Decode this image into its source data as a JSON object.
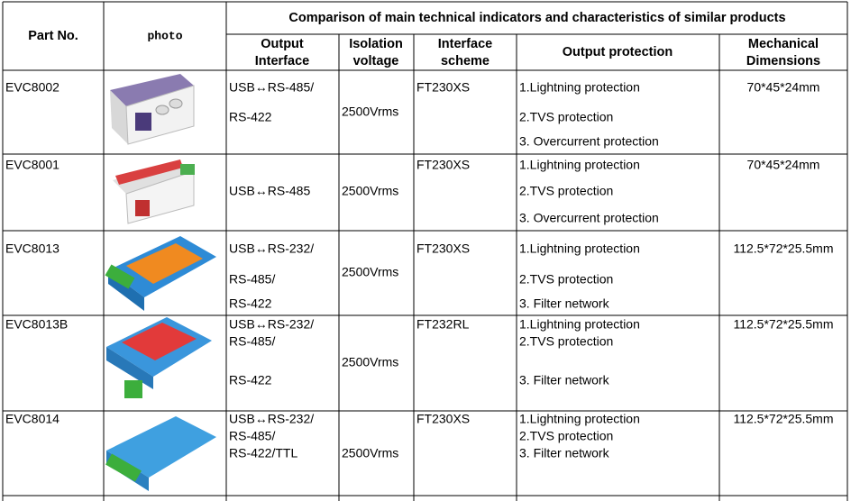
{
  "header": {
    "part_no": "Part No.",
    "photo": "photo",
    "title": "Comparison of main technical indicators and characteristics of similar products",
    "columns": [
      [
        "Output",
        "Interface"
      ],
      [
        "Isolation",
        "voltage"
      ],
      [
        "Interface",
        "scheme"
      ],
      [
        "Output protection"
      ],
      [
        "Mechanical",
        "Dimensions"
      ]
    ]
  },
  "rows": [
    {
      "part": "EVC8002",
      "interface": [
        "USB↔RS-485/",
        "RS-422"
      ],
      "voltage": "2500Vrms",
      "scheme": "FT230XS",
      "protection": [
        "1.Lightning protection",
        "2.TVS protection",
        "3. Overcurrent protection"
      ],
      "dimensions": "70*45*24mm"
    },
    {
      "part": "EVC8001",
      "interface": [
        "USB↔RS-485"
      ],
      "voltage": "2500Vrms",
      "scheme": "FT230XS",
      "protection": [
        "1.Lightning protection",
        "2.TVS protection",
        "3. Overcurrent protection"
      ],
      "dimensions": "70*45*24mm"
    },
    {
      "part": "EVC8013",
      "interface": [
        "USB↔RS-232/",
        "RS-485/",
        "RS-422"
      ],
      "voltage": "2500Vrms",
      "scheme": "FT230XS",
      "protection": [
        "1.Lightning protection",
        "2.TVS protection",
        "3. Filter network"
      ],
      "dimensions": "112.5*72*25.5mm"
    },
    {
      "part": "EVC8013B",
      "interface": [
        "USB↔RS-232/",
        "RS-485/",
        "RS-422"
      ],
      "voltage": "2500Vrms",
      "scheme": "FT232RL",
      "protection": [
        "1.Lightning protection",
        "2.TVS protection",
        "3. Filter network"
      ],
      "dimensions": "112.5*72*25.5mm"
    },
    {
      "part": "EVC8014",
      "interface": [
        "USB↔RS-232/",
        "RS-485/",
        "RS-422/TTL"
      ],
      "voltage": "2500Vrms",
      "scheme": "FT230XS",
      "protection": [
        "1.Lightning protection",
        "2.TVS protection",
        "3. Filter network"
      ],
      "dimensions": "112.5*72*25.5mm"
    }
  ]
}
